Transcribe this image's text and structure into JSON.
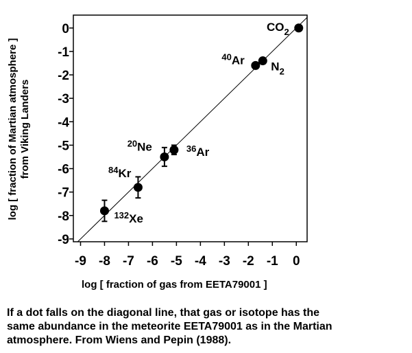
{
  "chart_data": {
    "type": "scatter",
    "y_label": [
      "log  [ fraction of Martian atmosphere ]",
      "from Viking Landers"
    ],
    "x_label": "log [ fraction of gas from EETA79001 ]",
    "caption": [
      "If a dot falls on the diagonal line, that gas or isotope has the",
      "same abundance in the meteorite EETA79001 as in the Martian",
      "atmosphere. From Wiens and Pepin (1988)."
    ],
    "xlim": [
      -9.3,
      0.45
    ],
    "ylim": [
      -9.12,
      0.55
    ],
    "xticks": [
      -9,
      -8,
      -7,
      -6,
      -5,
      -4,
      -3,
      -2,
      -1,
      0
    ],
    "yticks": [
      0,
      -1,
      -2,
      -3,
      -4,
      -5,
      -6,
      -7,
      -8,
      -9
    ],
    "diagonal": true,
    "color": "#000000",
    "points": [
      {
        "name": "CO",
        "sub": "2",
        "x": 0.1,
        "y": 0
      },
      {
        "name": "N",
        "sub": "2",
        "x": -1.4,
        "y": -1.4
      },
      {
        "sup": "40",
        "name": "Ar",
        "x": -1.7,
        "y": -1.6
      },
      {
        "sup": "36",
        "name": "Ar",
        "x": -5.1,
        "y": -5.2,
        "err": 0.2
      },
      {
        "sup": "20",
        "name": "Ne",
        "x": -5.5,
        "y": -5.5,
        "err": 0.4
      },
      {
        "sup": "84",
        "name": "Kr",
        "x": -6.6,
        "y": -6.8,
        "err": 0.45
      },
      {
        "sup": "132",
        "name": "Xe",
        "x": -8,
        "y": -7.8,
        "err": 0.45
      }
    ]
  }
}
